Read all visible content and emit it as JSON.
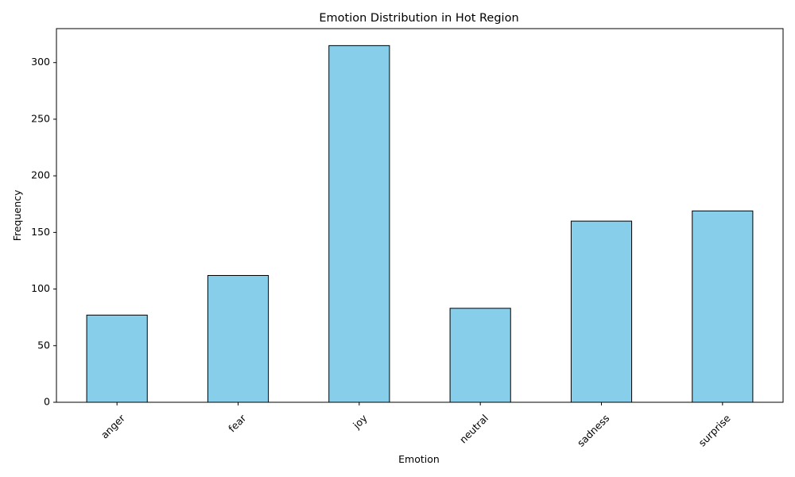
{
  "chart_data": {
    "type": "bar",
    "title": "Emotion Distribution in Hot Region",
    "xlabel": "Emotion",
    "ylabel": "Frequency",
    "categories": [
      "anger",
      "fear",
      "joy",
      "neutral",
      "sadness",
      "surprise"
    ],
    "values": [
      77,
      112,
      315,
      83,
      160,
      169
    ],
    "ylim": [
      0,
      330
    ],
    "yticks": [
      0,
      50,
      100,
      150,
      200,
      250,
      300
    ],
    "x_tick_rotation": 45,
    "grid": false,
    "legend": "none",
    "colors": {
      "bar_fill": "#87ceeb",
      "bar_edge": "#000000",
      "axis": "#000000",
      "background": "#ffffff"
    }
  }
}
